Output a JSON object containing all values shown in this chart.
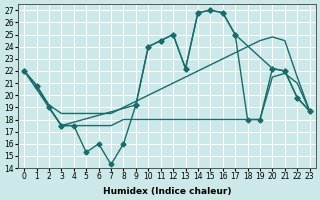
{
  "xlabel": "Humidex (Indice chaleur)",
  "bg_color": "#cce8e8",
  "grid_color": "#ffffff",
  "line_color": "#1a6b6b",
  "ylim": [
    14,
    27.5
  ],
  "xlim": [
    -0.5,
    23.5
  ],
  "yticks": [
    14,
    15,
    16,
    17,
    18,
    19,
    20,
    21,
    22,
    23,
    24,
    25,
    26,
    27
  ],
  "xticks": [
    0,
    1,
    2,
    3,
    4,
    5,
    6,
    7,
    8,
    9,
    10,
    11,
    12,
    13,
    14,
    15,
    16,
    17,
    18,
    19,
    20,
    21,
    22,
    23
  ],
  "series": [
    {
      "x": [
        0,
        1,
        2,
        3,
        9,
        10,
        11,
        12,
        13,
        14,
        15,
        16,
        17,
        20,
        21,
        22,
        23
      ],
      "y": [
        22.0,
        20.8,
        19.0,
        17.5,
        19.2,
        24.0,
        24.5,
        25.0,
        22.2,
        26.8,
        27.0,
        26.8,
        25.0,
        22.2,
        22.0,
        19.8,
        18.7
      ],
      "marker": "D",
      "markersize": 2.5,
      "linewidth": 1.0
    },
    {
      "x": [
        0,
        1,
        2,
        3,
        4,
        5,
        6,
        7,
        8,
        9,
        10,
        11,
        12,
        13,
        14,
        15,
        16,
        17,
        18,
        19,
        20,
        21,
        22,
        23
      ],
      "y": [
        22.0,
        20.8,
        19.0,
        17.5,
        17.5,
        15.3,
        16.0,
        14.3,
        16.0,
        19.2,
        24.0,
        24.5,
        25.0,
        22.2,
        26.8,
        27.0,
        26.8,
        25.0,
        18.0,
        18.0,
        22.2,
        22.0,
        19.8,
        18.7
      ],
      "marker": "D",
      "markersize": 2.5,
      "linewidth": 1.0
    },
    {
      "x": [
        0,
        1,
        2,
        3,
        4,
        5,
        6,
        7,
        8,
        9,
        10,
        11,
        12,
        13,
        14,
        15,
        16,
        17,
        18,
        19,
        20,
        21,
        22,
        23
      ],
      "y": [
        22.0,
        20.5,
        19.0,
        17.5,
        17.5,
        17.5,
        17.5,
        17.5,
        18.0,
        18.0,
        18.0,
        18.0,
        18.0,
        18.0,
        18.0,
        18.0,
        18.0,
        18.0,
        18.0,
        18.0,
        21.5,
        21.8,
        21.0,
        18.7
      ],
      "marker": null,
      "markersize": 0,
      "linewidth": 1.0
    },
    {
      "x": [
        0,
        1,
        2,
        3,
        4,
        5,
        6,
        7,
        8,
        9,
        10,
        11,
        12,
        13,
        14,
        15,
        16,
        17,
        18,
        19,
        20,
        21,
        22,
        23
      ],
      "y": [
        22.0,
        20.8,
        19.2,
        18.5,
        18.5,
        18.5,
        18.5,
        18.5,
        19.0,
        19.5,
        20.0,
        20.5,
        21.0,
        21.5,
        22.0,
        22.5,
        23.0,
        23.5,
        24.0,
        24.5,
        24.8,
        24.5,
        21.5,
        18.7
      ],
      "marker": null,
      "markersize": 0,
      "linewidth": 1.0
    }
  ]
}
